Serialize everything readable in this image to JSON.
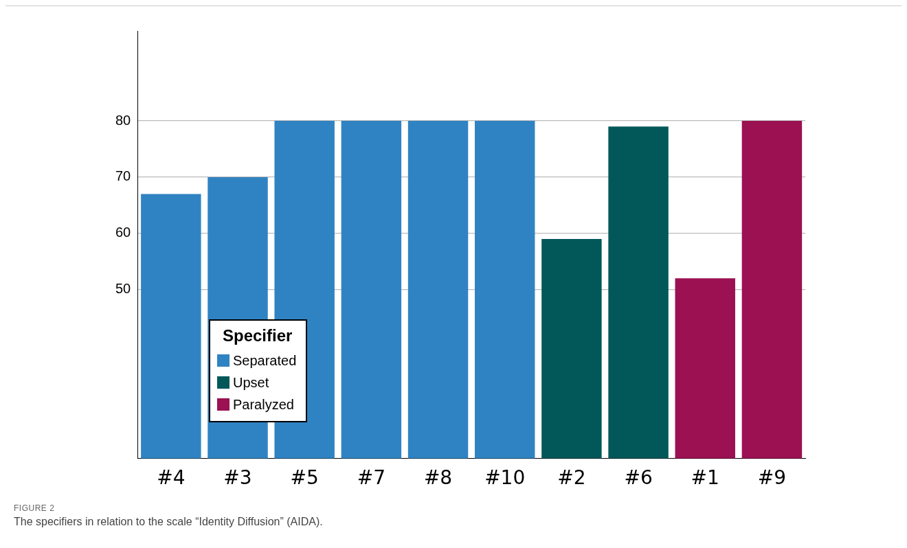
{
  "chart_data": {
    "type": "bar",
    "categories": [
      "#4",
      "#3",
      "#5",
      "#7",
      "#8",
      "#10",
      "#2",
      "#6",
      "#1",
      "#9"
    ],
    "series": [
      {
        "name": "Separated",
        "color": "#3083c2",
        "values": [
          67,
          70,
          80,
          80,
          80,
          80,
          null,
          null,
          null,
          null
        ]
      },
      {
        "name": "Upset",
        "color": "#025859",
        "values": [
          null,
          null,
          null,
          null,
          null,
          null,
          59,
          79,
          null,
          null
        ]
      },
      {
        "name": "Paralyzed",
        "color": "#9b1152",
        "values": [
          null,
          null,
          null,
          null,
          null,
          null,
          null,
          null,
          52,
          80
        ]
      }
    ],
    "ylim": [
      20,
      96
    ],
    "yticks": [
      50,
      60,
      70,
      80
    ],
    "grid": "y",
    "legend": "bottom left",
    "legend_title": "Specifier",
    "annotations": [
      "FIGURE 2",
      "The specifiers in relation to the scale “Identity Diffusion” (AIDA)."
    ]
  }
}
